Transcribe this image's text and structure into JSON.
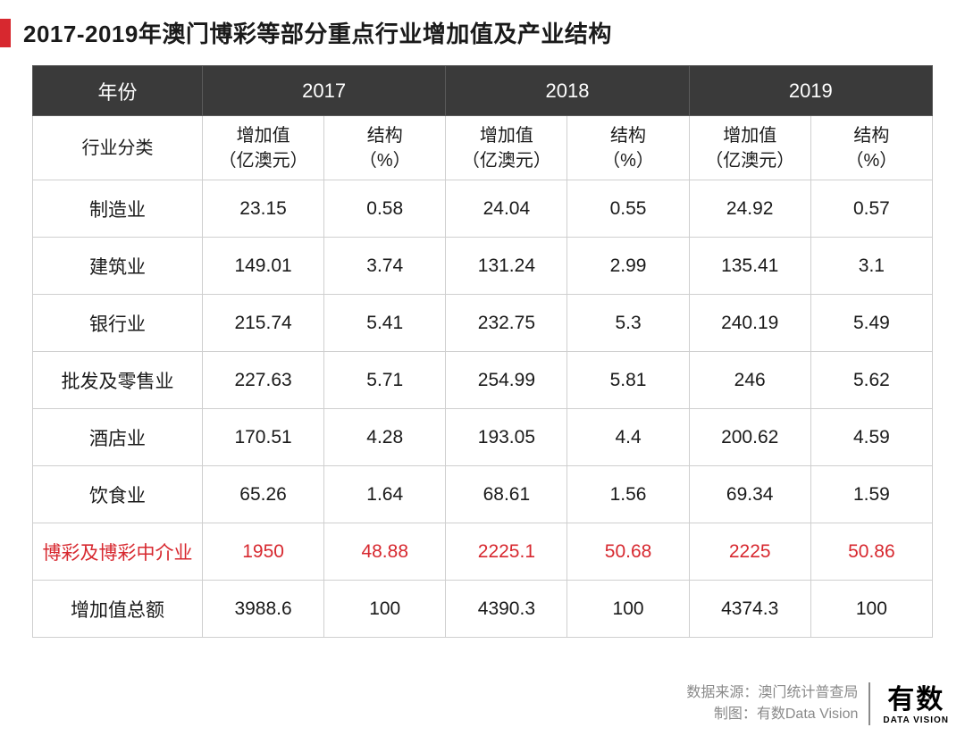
{
  "title": "2017-2019年澳门博彩等部分重点行业增加值及产业结构",
  "colors": {
    "accent": "#d7282f",
    "header_bg": "#3a3a3a",
    "header_fg": "#ffffff",
    "border": "#cfcfcf",
    "text": "#1a1a1a",
    "footer_text": "#8a8a8a"
  },
  "table": {
    "year_header_label": "年份",
    "years": [
      "2017",
      "2018",
      "2019"
    ],
    "category_header_label": "行业分类",
    "sub_headers": {
      "value": "增加值\n（亿澳元）",
      "structure": "结构\n（%）"
    },
    "rows": [
      {
        "label": "制造业",
        "cells": [
          "23.15",
          "0.58",
          "24.04",
          "0.55",
          "24.92",
          "0.57"
        ],
        "highlight": false
      },
      {
        "label": "建筑业",
        "cells": [
          "149.01",
          "3.74",
          "131.24",
          "2.99",
          "135.41",
          "3.1"
        ],
        "highlight": false
      },
      {
        "label": "银行业",
        "cells": [
          "215.74",
          "5.41",
          "232.75",
          "5.3",
          "240.19",
          "5.49"
        ],
        "highlight": false
      },
      {
        "label": "批发及零售业",
        "cells": [
          "227.63",
          "5.71",
          "254.99",
          "5.81",
          "246",
          "5.62"
        ],
        "highlight": false
      },
      {
        "label": "酒店业",
        "cells": [
          "170.51",
          "4.28",
          "193.05",
          "4.4",
          "200.62",
          "4.59"
        ],
        "highlight": false
      },
      {
        "label": "饮食业",
        "cells": [
          "65.26",
          "1.64",
          "68.61",
          "1.56",
          "69.34",
          "1.59"
        ],
        "highlight": false
      },
      {
        "label": "博彩及博彩中介业",
        "cells": [
          "1950",
          "48.88",
          "2225.1",
          "50.68",
          "2225",
          "50.86"
        ],
        "highlight": true
      },
      {
        "label": "增加值总额",
        "cells": [
          "3988.6",
          "100",
          "4390.3",
          "100",
          "4374.3",
          "100"
        ],
        "highlight": false
      }
    ]
  },
  "footer": {
    "source_label": "数据来源：澳门统计普查局",
    "credit_label": "制图：有数Data Vision",
    "logo_main": "有数",
    "logo_sub": "DATA VISION"
  }
}
